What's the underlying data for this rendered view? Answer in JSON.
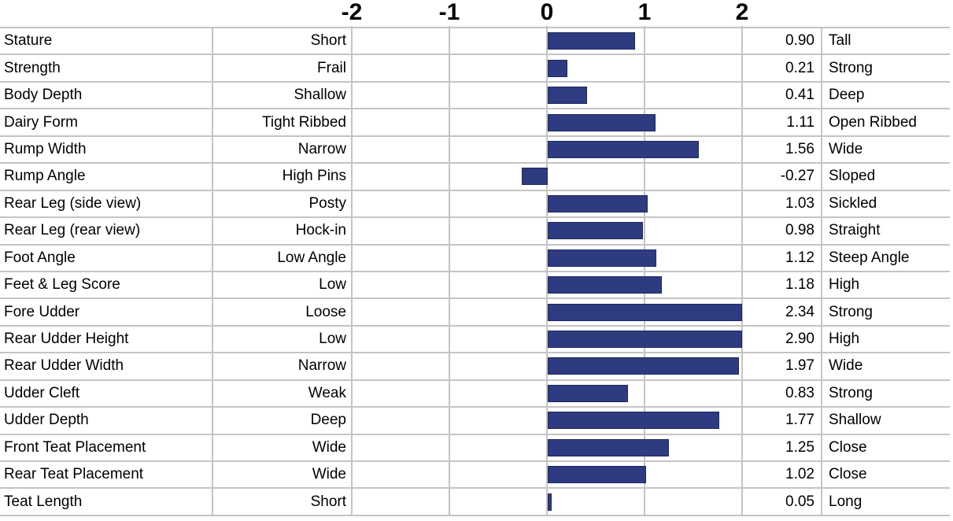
{
  "chart_data": {
    "type": "bar",
    "orientation": "horizontal",
    "title": "",
    "xlabel": "",
    "ylabel": "",
    "axis_ticks": [
      "-2",
      "-1",
      "0",
      "1",
      "2"
    ],
    "xlim": [
      -2,
      2
    ],
    "bars_clipped_at": 2,
    "grid": true,
    "bar_color": "#2e3b80",
    "bar_border_color": "#1f2a5c",
    "grid_color": "#c4c4c4",
    "rows": [
      {
        "trait": "Stature",
        "low": "Short",
        "value": "0.90",
        "high": "Tall"
      },
      {
        "trait": "Strength",
        "low": "Frail",
        "value": "0.21",
        "high": "Strong"
      },
      {
        "trait": "Body Depth",
        "low": "Shallow",
        "value": "0.41",
        "high": "Deep"
      },
      {
        "trait": "Dairy Form",
        "low": "Tight Ribbed",
        "value": "1.11",
        "high": "Open Ribbed"
      },
      {
        "trait": "Rump Width",
        "low": "Narrow",
        "value": "1.56",
        "high": "Wide"
      },
      {
        "trait": "Rump Angle",
        "low": "High Pins",
        "value": "-0.27",
        "high": "Sloped"
      },
      {
        "trait": "Rear Leg (side view)",
        "low": "Posty",
        "value": "1.03",
        "high": "Sickled"
      },
      {
        "trait": "Rear Leg (rear view)",
        "low": "Hock-in",
        "value": "0.98",
        "high": "Straight"
      },
      {
        "trait": "Foot Angle",
        "low": "Low Angle",
        "value": "1.12",
        "high": "Steep Angle"
      },
      {
        "trait": "Feet & Leg Score",
        "low": "Low",
        "value": "1.18",
        "high": "High"
      },
      {
        "trait": "Fore Udder",
        "low": "Loose",
        "value": "2.34",
        "high": "Strong"
      },
      {
        "trait": "Rear Udder Height",
        "low": "Low",
        "value": "2.90",
        "high": "High"
      },
      {
        "trait": "Rear Udder Width",
        "low": "Narrow",
        "value": "1.97",
        "high": "Wide"
      },
      {
        "trait": "Udder Cleft",
        "low": "Weak",
        "value": "0.83",
        "high": "Strong"
      },
      {
        "trait": "Udder Depth",
        "low": "Deep",
        "value": "1.77",
        "high": "Shallow"
      },
      {
        "trait": "Front Teat Placement",
        "low": "Wide",
        "value": "1.25",
        "high": "Close"
      },
      {
        "trait": "Rear Teat Placement",
        "low": "Wide",
        "value": "1.02",
        "high": "Close"
      },
      {
        "trait": "Teat Length",
        "low": "Short",
        "value": "0.05",
        "high": "Long"
      }
    ]
  }
}
